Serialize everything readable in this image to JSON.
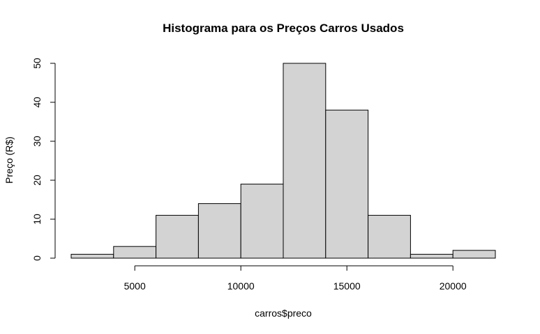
{
  "chart_data": {
    "type": "bar",
    "title": "Histograma para os Preços Carros Usados",
    "xlabel": "carros$preco",
    "ylabel": "Preço (R$)",
    "bin_edges": [
      2000,
      4000,
      6000,
      8000,
      10000,
      12000,
      14000,
      16000,
      18000,
      20000,
      22000
    ],
    "counts": [
      1,
      3,
      11,
      14,
      19,
      50,
      38,
      11,
      1,
      2
    ],
    "xlim": [
      2000,
      22000
    ],
    "ylim": [
      0,
      50
    ],
    "x_ticks": [
      5000,
      10000,
      15000,
      20000
    ],
    "y_ticks": [
      0,
      10,
      20,
      30,
      40,
      50
    ],
    "bar_color": "#d3d3d3",
    "border_color": "#000000",
    "grid": false
  }
}
